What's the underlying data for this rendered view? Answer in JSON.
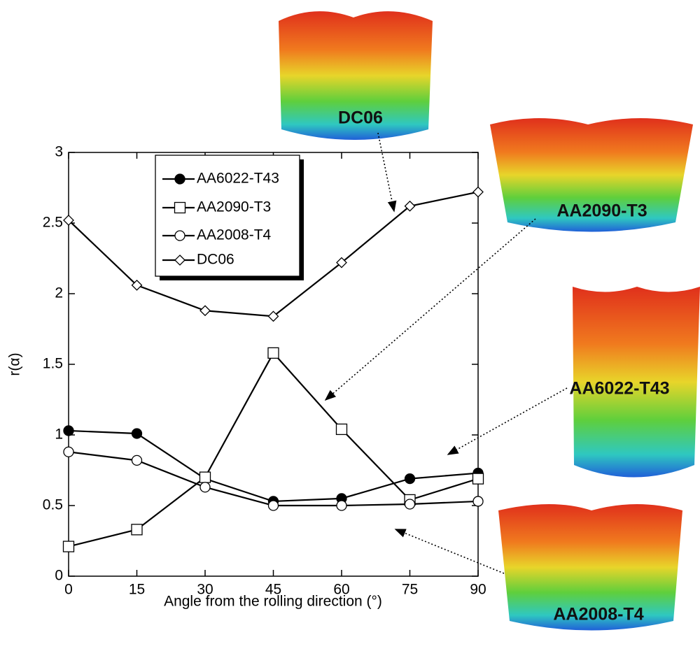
{
  "chart_data": {
    "type": "line",
    "x_label": "Angle from the rolling direction (°)",
    "y_label": "r(α)",
    "x": [
      0,
      15,
      30,
      45,
      60,
      75,
      90
    ],
    "series": [
      {
        "name": "AA6022-T43",
        "color": "#000000",
        "marker": "filled-circle",
        "values": [
          1.03,
          1.01,
          0.69,
          0.53,
          0.55,
          0.69,
          0.73
        ]
      },
      {
        "name": "AA2090-T3",
        "color": "#000000",
        "marker": "open-square",
        "values": [
          0.21,
          0.33,
          0.7,
          1.58,
          1.04,
          0.54,
          0.69
        ]
      },
      {
        "name": "AA2008-T4",
        "color": "#000000",
        "marker": "open-circle",
        "values": [
          0.88,
          0.82,
          0.63,
          0.5,
          0.5,
          0.51,
          0.53
        ]
      },
      {
        "name": "DC06",
        "color": "#000000",
        "marker": "open-diamond",
        "values": [
          2.52,
          2.06,
          1.88,
          1.84,
          2.22,
          2.62,
          2.72
        ]
      }
    ],
    "xlim": [
      0,
      90
    ],
    "xticks": [
      0,
      15,
      30,
      45,
      60,
      75,
      90
    ],
    "ylim": [
      0,
      3
    ],
    "yticks": [
      0,
      0.5,
      1,
      1.5,
      2,
      2.5,
      3
    ],
    "grid": false,
    "legend": "upper-left",
    "annotations": [
      "DC06",
      "AA2090-T3",
      "AA6022-T43",
      "AA2008-T4"
    ]
  }
}
